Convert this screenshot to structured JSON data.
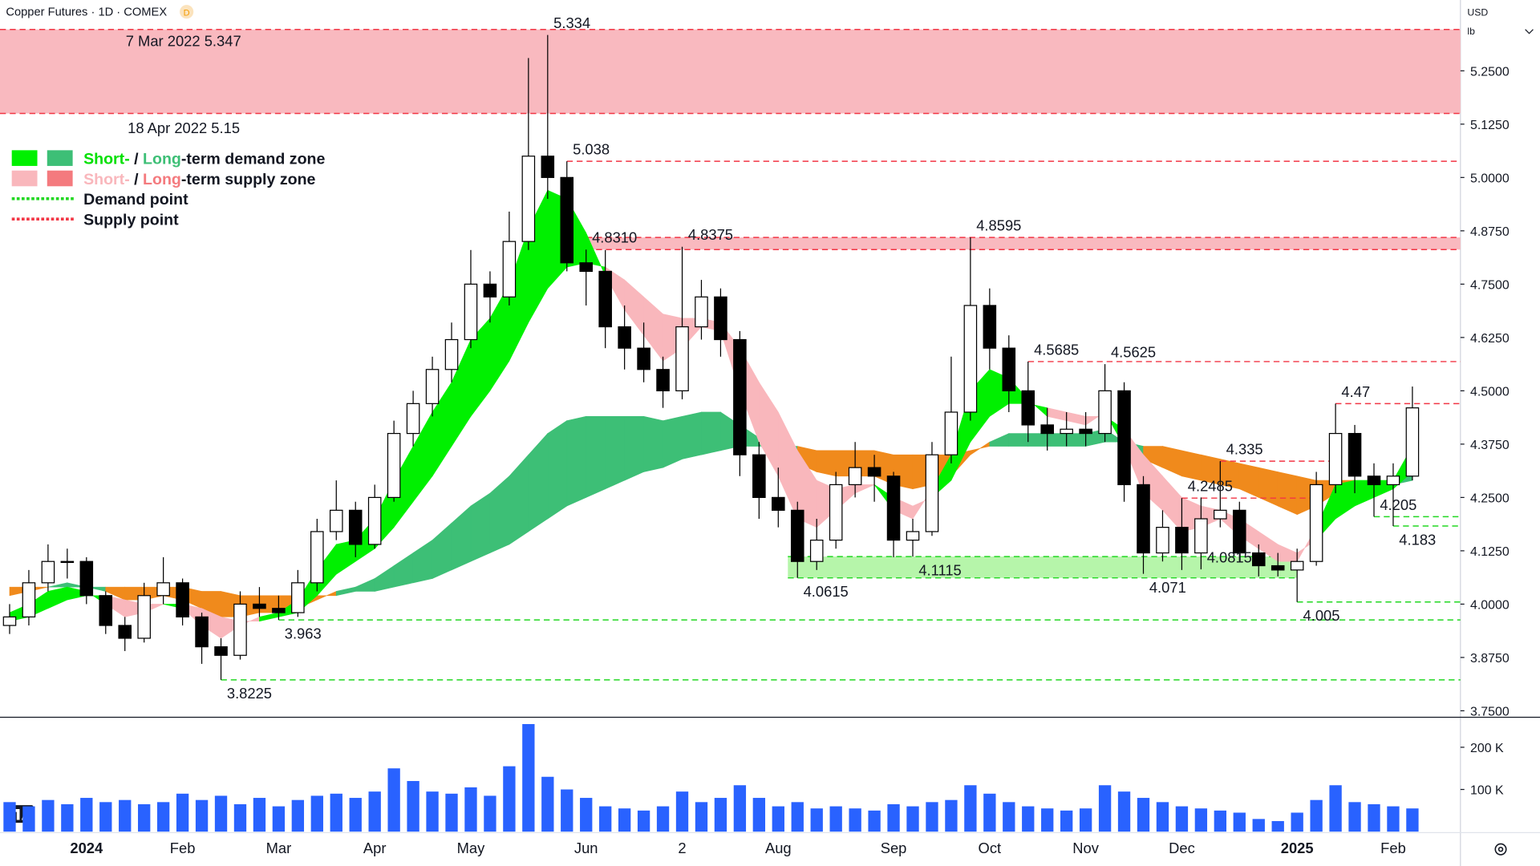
{
  "chart_data": {
    "type": "candlestick",
    "title": "Copper Futures · 1D · COMEX",
    "badge": "D",
    "currency": "USD",
    "unit": "lb",
    "categories": [
      null,
      null,
      null,
      null,
      "2024",
      null,
      null,
      null,
      null,
      "Feb",
      null,
      null,
      null,
      null,
      "Mar",
      null,
      null,
      null,
      null,
      "Apr",
      null,
      null,
      null,
      null,
      "May",
      null,
      null,
      null,
      null,
      null,
      "Jun",
      null,
      null,
      null,
      null,
      "2",
      null,
      null,
      null,
      null,
      "Aug",
      null,
      null,
      null,
      null,
      null,
      "Sep",
      null,
      null,
      null,
      null,
      "Oct",
      null,
      null,
      null,
      null,
      "Nov",
      null,
      null,
      null,
      null,
      "Dec",
      null,
      null,
      null,
      null,
      null,
      "2025",
      null,
      null,
      null,
      null,
      "Feb",
      null
    ],
    "ohlc": [
      [
        3.95,
        4.0,
        3.93,
        3.97
      ],
      [
        3.97,
        4.08,
        3.95,
        4.05
      ],
      [
        4.05,
        4.14,
        4.03,
        4.1
      ],
      [
        4.1,
        4.13,
        4.06,
        4.1
      ],
      [
        4.1,
        4.11,
        4.0,
        4.02
      ],
      [
        4.02,
        4.03,
        3.93,
        3.95
      ],
      [
        3.95,
        3.97,
        3.89,
        3.92
      ],
      [
        3.92,
        4.05,
        3.91,
        4.02
      ],
      [
        4.02,
        4.11,
        4.0,
        4.05
      ],
      [
        4.05,
        4.06,
        3.95,
        3.97
      ],
      [
        3.97,
        3.98,
        3.86,
        3.9
      ],
      [
        3.9,
        3.92,
        3.8225,
        3.88
      ],
      [
        3.88,
        4.03,
        3.87,
        4.0
      ],
      [
        4.0,
        4.04,
        3.97,
        3.99
      ],
      [
        3.99,
        4.02,
        3.963,
        3.98
      ],
      [
        3.98,
        4.08,
        3.97,
        4.05
      ],
      [
        4.05,
        4.2,
        4.03,
        4.17
      ],
      [
        4.17,
        4.29,
        4.15,
        4.22
      ],
      [
        4.22,
        4.24,
        4.11,
        4.14
      ],
      [
        4.14,
        4.28,
        4.13,
        4.25
      ],
      [
        4.25,
        4.43,
        4.24,
        4.4
      ],
      [
        4.4,
        4.5,
        4.37,
        4.47
      ],
      [
        4.47,
        4.58,
        4.44,
        4.55
      ],
      [
        4.55,
        4.66,
        4.52,
        4.62
      ],
      [
        4.62,
        4.83,
        4.6,
        4.75
      ],
      [
        4.75,
        4.78,
        4.66,
        4.72
      ],
      [
        4.72,
        4.92,
        4.7,
        4.85
      ],
      [
        4.85,
        5.28,
        4.83,
        5.05
      ],
      [
        5.05,
        5.334,
        4.95,
        5.0
      ],
      [
        5.0,
        5.038,
        4.78,
        4.8
      ],
      [
        4.8,
        4.831,
        4.7,
        4.78
      ],
      [
        4.78,
        4.83,
        4.6,
        4.65
      ],
      [
        4.65,
        4.7,
        4.55,
        4.6
      ],
      [
        4.6,
        4.66,
        4.52,
        4.55
      ],
      [
        4.55,
        4.58,
        4.46,
        4.5
      ],
      [
        4.5,
        4.8375,
        4.48,
        4.65
      ],
      [
        4.65,
        4.76,
        4.62,
        4.72
      ],
      [
        4.72,
        4.74,
        4.58,
        4.62
      ],
      [
        4.62,
        4.64,
        4.3,
        4.35
      ],
      [
        4.35,
        4.38,
        4.2,
        4.25
      ],
      [
        4.25,
        4.32,
        4.18,
        4.22
      ],
      [
        4.22,
        4.24,
        4.0615,
        4.1
      ],
      [
        4.1,
        4.2,
        4.08,
        4.15
      ],
      [
        4.15,
        4.31,
        4.13,
        4.28
      ],
      [
        4.28,
        4.38,
        4.25,
        4.32
      ],
      [
        4.32,
        4.35,
        4.24,
        4.3
      ],
      [
        4.3,
        4.31,
        4.11,
        4.15
      ],
      [
        4.15,
        4.2,
        4.1115,
        4.17
      ],
      [
        4.17,
        4.38,
        4.16,
        4.35
      ],
      [
        4.35,
        4.58,
        4.33,
        4.45
      ],
      [
        4.45,
        4.8595,
        4.43,
        4.7
      ],
      [
        4.7,
        4.74,
        4.55,
        4.6
      ],
      [
        4.6,
        4.63,
        4.45,
        4.5
      ],
      [
        4.5,
        4.5685,
        4.38,
        4.42
      ],
      [
        4.42,
        4.46,
        4.36,
        4.4
      ],
      [
        4.4,
        4.45,
        4.37,
        4.41
      ],
      [
        4.41,
        4.45,
        4.37,
        4.4
      ],
      [
        4.4,
        4.5625,
        4.38,
        4.5
      ],
      [
        4.5,
        4.52,
        4.24,
        4.28
      ],
      [
        4.28,
        4.3,
        4.071,
        4.12
      ],
      [
        4.12,
        4.22,
        4.1,
        4.18
      ],
      [
        4.18,
        4.2485,
        4.08,
        4.12
      ],
      [
        4.12,
        4.25,
        4.0815,
        4.2
      ],
      [
        4.2,
        4.335,
        4.18,
        4.22
      ],
      [
        4.22,
        4.24,
        4.1,
        4.12
      ],
      [
        4.12,
        4.14,
        4.065,
        4.09
      ],
      [
        4.09,
        4.12,
        4.065,
        4.08
      ],
      [
        4.08,
        4.13,
        4.005,
        4.1
      ],
      [
        4.1,
        4.31,
        4.09,
        4.28
      ],
      [
        4.28,
        4.47,
        4.26,
        4.4
      ],
      [
        4.4,
        4.42,
        4.26,
        4.3
      ],
      [
        4.3,
        4.33,
        4.205,
        4.28
      ],
      [
        4.28,
        4.33,
        4.183,
        4.3
      ],
      [
        4.3,
        4.51,
        4.29,
        4.46
      ]
    ],
    "up_color": "#ffffff",
    "down_color": "#000000",
    "wick_color": "#000000",
    "volume": [
      70000,
      60000,
      75000,
      65000,
      80000,
      70000,
      75000,
      65000,
      70000,
      90000,
      75000,
      85000,
      65000,
      80000,
      60000,
      75000,
      85000,
      90000,
      80000,
      95000,
      150000,
      120000,
      95000,
      90000,
      105000,
      85000,
      155000,
      255000,
      130000,
      100000,
      80000,
      60000,
      55000,
      50000,
      60000,
      95000,
      70000,
      80000,
      110000,
      80000,
      60000,
      70000,
      55000,
      60000,
      55000,
      50000,
      65000,
      60000,
      70000,
      75000,
      110000,
      90000,
      70000,
      60000,
      55000,
      50000,
      55000,
      110000,
      95000,
      80000,
      70000,
      60000,
      55000,
      50000,
      45000,
      30000,
      25000,
      45000,
      75000,
      110000,
      70000,
      65000,
      60000,
      55000
    ],
    "volume_color": "#2962ff",
    "ylim": [
      3.736,
      5.416
    ],
    "yticks": [
      {
        "value": 3.75,
        "label": "3.7500"
      },
      {
        "value": 3.875,
        "label": "3.8750"
      },
      {
        "value": 4,
        "label": "4.0000"
      },
      {
        "value": 4.125,
        "label": "4.1250"
      },
      {
        "value": 4.25,
        "label": "4.2500"
      },
      {
        "value": 4.375,
        "label": "4.3750"
      },
      {
        "value": 4.5,
        "label": "4.5000"
      },
      {
        "value": 4.625,
        "label": "4.6250"
      },
      {
        "value": 4.75,
        "label": "4.7500"
      },
      {
        "value": 4.875,
        "label": "4.8750"
      },
      {
        "value": 5,
        "label": "5.0000"
      },
      {
        "value": 5.125,
        "label": "5.1250"
      },
      {
        "value": 5.25,
        "label": "5.2500"
      }
    ],
    "vlim": [
      0,
      270000
    ],
    "vticks": [
      {
        "value": 100000,
        "label": "100 K"
      },
      {
        "value": 200000,
        "label": "200 K"
      }
    ],
    "grid": false,
    "ribbons": [
      {
        "up_color": "#3dbf76",
        "down_color": "#f08a1c",
        "fast": [
          4.02,
          4.03,
          4.04,
          4.05,
          4.04,
          4.03,
          4.01,
          4.01,
          4.02,
          4.01,
          3.99,
          3.97,
          3.97,
          3.98,
          3.98,
          3.99,
          4.01,
          4.03,
          4.04,
          4.06,
          4.09,
          4.12,
          4.15,
          4.19,
          4.23,
          4.26,
          4.3,
          4.35,
          4.4,
          4.43,
          4.44,
          4.44,
          4.44,
          4.44,
          4.43,
          4.44,
          4.45,
          4.45,
          4.42,
          4.39,
          4.37,
          4.33,
          4.31,
          4.3,
          4.3,
          4.3,
          4.28,
          4.27,
          4.28,
          4.3,
          4.35,
          4.38,
          4.4,
          4.4,
          4.4,
          4.4,
          4.4,
          4.41,
          4.38,
          4.34,
          4.32,
          4.3,
          4.29,
          4.28,
          4.27,
          4.25,
          4.23,
          4.21,
          4.23,
          4.26,
          4.27,
          4.27,
          4.28,
          4.31
        ],
        "slow": [
          4.04,
          4.04,
          4.04,
          4.04,
          4.04,
          4.04,
          4.04,
          4.04,
          4.04,
          4.04,
          4.03,
          4.03,
          4.02,
          4.02,
          4.02,
          4.02,
          4.02,
          4.02,
          4.03,
          4.03,
          4.04,
          4.05,
          4.06,
          4.08,
          4.1,
          4.12,
          4.14,
          4.17,
          4.2,
          4.23,
          4.25,
          4.27,
          4.29,
          4.31,
          4.32,
          4.34,
          4.35,
          4.36,
          4.37,
          4.37,
          4.37,
          4.37,
          4.36,
          4.36,
          4.36,
          4.36,
          4.35,
          4.35,
          4.35,
          4.35,
          4.36,
          4.37,
          4.37,
          4.37,
          4.37,
          4.37,
          4.37,
          4.38,
          4.38,
          4.37,
          4.37,
          4.36,
          4.35,
          4.34,
          4.33,
          4.32,
          4.31,
          4.3,
          4.29,
          4.29,
          4.29,
          4.28,
          4.28,
          4.29
        ]
      },
      {
        "up_color": "#00f000",
        "down_color": "#f9b7bc",
        "fast": [
          3.98,
          4.0,
          4.03,
          4.04,
          4.03,
          4.0,
          3.97,
          3.98,
          4.0,
          3.99,
          3.95,
          3.92,
          3.95,
          3.97,
          3.98,
          4.01,
          4.08,
          4.14,
          4.15,
          4.2,
          4.29,
          4.37,
          4.45,
          4.52,
          4.62,
          4.67,
          4.75,
          4.88,
          4.97,
          4.95,
          4.87,
          4.77,
          4.69,
          4.63,
          4.57,
          4.6,
          4.65,
          4.64,
          4.5,
          4.38,
          4.3,
          4.2,
          4.18,
          4.22,
          4.26,
          4.28,
          4.22,
          4.2,
          4.27,
          4.35,
          4.5,
          4.55,
          4.53,
          4.48,
          4.44,
          4.43,
          4.42,
          4.45,
          4.37,
          4.26,
          4.22,
          4.17,
          4.18,
          4.2,
          4.16,
          4.13,
          4.1,
          4.1,
          4.18,
          4.28,
          4.29,
          4.29,
          4.29,
          4.37
        ],
        "slow": [
          3.96,
          3.97,
          3.99,
          4.01,
          4.02,
          4.02,
          4.01,
          4.0,
          4.0,
          4.0,
          3.99,
          3.97,
          3.96,
          3.96,
          3.97,
          3.98,
          4.02,
          4.07,
          4.1,
          4.13,
          4.18,
          4.24,
          4.3,
          4.37,
          4.44,
          4.5,
          4.57,
          4.66,
          4.74,
          4.79,
          4.8,
          4.79,
          4.76,
          4.72,
          4.68,
          4.67,
          4.67,
          4.66,
          4.6,
          4.52,
          4.45,
          4.36,
          4.29,
          4.27,
          4.28,
          4.28,
          4.25,
          4.23,
          4.25,
          4.29,
          4.38,
          4.44,
          4.47,
          4.47,
          4.46,
          4.45,
          4.44,
          4.44,
          4.41,
          4.35,
          4.3,
          4.25,
          4.23,
          4.22,
          4.2,
          4.17,
          4.14,
          4.12,
          4.15,
          4.2,
          4.23,
          4.25,
          4.27,
          4.31
        ]
      }
    ],
    "level_colors": {
      "supply": "#f23645",
      "demand": "#22d822"
    },
    "zones": [
      {
        "kind": "supply",
        "top": 5.347,
        "bottom": 5.15,
        "color": "#f9b9bf",
        "top_label": "7 Mar 2022 5.347",
        "bottom_label": "18 Apr 2022 5.15"
      },
      {
        "kind": "supply",
        "top": 4.8595,
        "bottom": 4.831,
        "color": "#f9b9bf"
      },
      {
        "kind": "demand",
        "top": 4.1115,
        "bottom": 4.0615,
        "color": "#b6f5aa"
      }
    ],
    "levels": [
      {
        "kind": "supply",
        "value": 5.334,
        "label": "5.334",
        "line": false
      },
      {
        "kind": "supply",
        "value": 5.038,
        "label": "5.038",
        "line": true
      },
      {
        "kind": "supply",
        "value": 4.831,
        "label": "4.8310",
        "line": false
      },
      {
        "kind": "supply",
        "value": 4.8375,
        "label": "4.8375",
        "line": false
      },
      {
        "kind": "supply",
        "value": 4.8595,
        "label": "4.8595",
        "line": false
      },
      {
        "kind": "supply",
        "value": 4.5685,
        "label": "4.5685",
        "line": true
      },
      {
        "kind": "supply",
        "value": 4.5625,
        "label": "4.5625",
        "line": false
      },
      {
        "kind": "supply",
        "value": 4.47,
        "label": "4.47",
        "line": true
      },
      {
        "kind": "supply",
        "value": 4.335,
        "label": "4.335",
        "line": true
      },
      {
        "kind": "supply",
        "value": 4.2485,
        "label": "4.2485",
        "line": true
      },
      {
        "kind": "demand",
        "value": 3.8225,
        "label": "3.8225",
        "line": true
      },
      {
        "kind": "demand",
        "value": 3.963,
        "label": "3.963",
        "line": true
      },
      {
        "kind": "demand",
        "value": 4.0615,
        "label": "4.0615",
        "line": false
      },
      {
        "kind": "demand",
        "value": 4.1115,
        "label": "4.1115",
        "line": false
      },
      {
        "kind": "demand",
        "value": 4.071,
        "label": "4.071",
        "line": false
      },
      {
        "kind": "demand",
        "value": 4.0815,
        "label": "4.0815",
        "line": false
      },
      {
        "kind": "demand",
        "value": 4.005,
        "label": "4.005",
        "line": true
      },
      {
        "kind": "demand",
        "value": 4.205,
        "label": "4.205",
        "line": true
      },
      {
        "kind": "demand",
        "value": 4.183,
        "label": "4.183",
        "line": true
      }
    ],
    "legend": [
      {
        "swatches": [
          "#00f000",
          "#3dbf76"
        ],
        "parts": [
          {
            "text": "Short-",
            "color": "#00e000"
          },
          {
            "text": " / ",
            "color": "#131722"
          },
          {
            "text": "Long",
            "color": "#3dbf76"
          },
          {
            "text": "-term demand zone",
            "color": "#131722"
          }
        ]
      },
      {
        "swatches": [
          "#f9b7bc",
          "#f47a7e"
        ],
        "parts": [
          {
            "text": "Short-",
            "color": "#f9b7bc"
          },
          {
            "text": " / ",
            "color": "#131722"
          },
          {
            "text": "Long",
            "color": "#f47a7e"
          },
          {
            "text": "-term supply zone",
            "color": "#131722"
          }
        ]
      },
      {
        "line": "#22d822",
        "parts": [
          {
            "text": "Demand point",
            "color": "#131722"
          }
        ]
      },
      {
        "line": "#f23645",
        "parts": [
          {
            "text": "Supply point",
            "color": "#131722"
          }
        ]
      }
    ]
  }
}
